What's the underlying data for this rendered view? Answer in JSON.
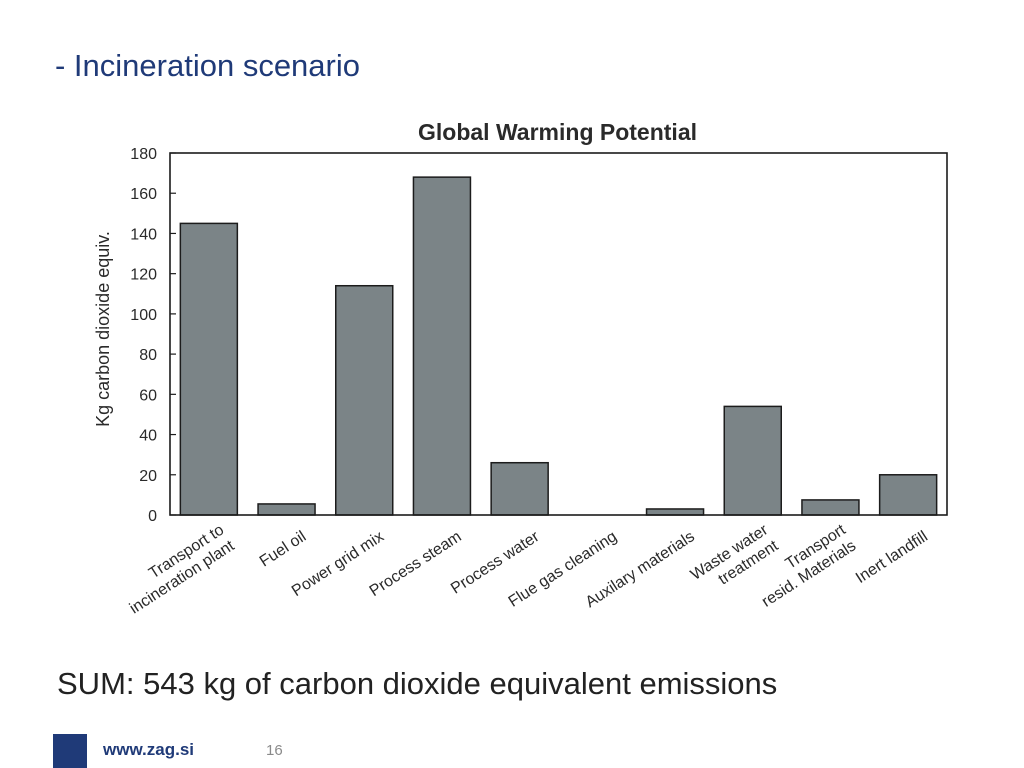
{
  "slide": {
    "title": "- Incineration scenario",
    "sum": "SUM: 543 kg of carbon dioxide equivalent emissions",
    "footer_url": "www.zag.si",
    "page_number": "16"
  },
  "colors": {
    "bar_fill": "#7b8487",
    "bar_stroke": "#1c1c1c",
    "title_blue": "#1f3a78",
    "logo_blue": "#1f3a78"
  },
  "chart_data": {
    "type": "bar",
    "title": "Global Warming Potential",
    "ylabel": "Kg carbon dioxide equiv.",
    "xlabel": "",
    "ylim": [
      0,
      180
    ],
    "yticks": [
      0,
      20,
      40,
      60,
      80,
      100,
      120,
      140,
      160,
      180
    ],
    "grid": false,
    "categories": [
      [
        "Transport to",
        "incineration plant"
      ],
      [
        "Fuel oil"
      ],
      [
        "Power grid mix"
      ],
      [
        "Process steam"
      ],
      [
        "Process water"
      ],
      [
        "Flue gas cleaning"
      ],
      [
        "Auxilary materials"
      ],
      [
        "Waste water",
        "treatment"
      ],
      [
        "Transport",
        "resid. Materials"
      ],
      [
        "Inert landfill"
      ]
    ],
    "values": [
      145,
      5.5,
      114,
      168,
      26,
      0,
      3,
      54,
      7.5,
      20
    ]
  }
}
